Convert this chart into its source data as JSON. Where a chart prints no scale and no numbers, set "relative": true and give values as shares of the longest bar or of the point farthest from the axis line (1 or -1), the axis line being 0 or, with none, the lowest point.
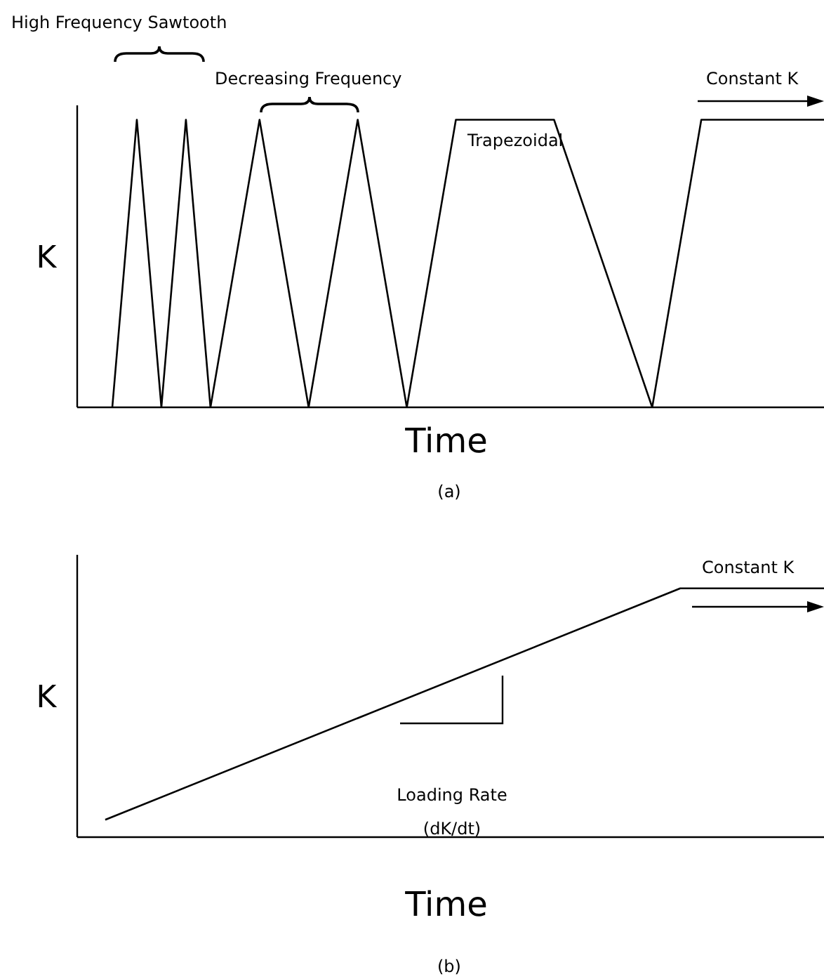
{
  "chart_data": [
    {
      "type": "line",
      "relative": true,
      "xlabel": "Time",
      "ylabel": "K",
      "categories": [
        null,
        null,
        null,
        null,
        null,
        null,
        null,
        null,
        null,
        null,
        null,
        null,
        null,
        null,
        null,
        null,
        null,
        null,
        null,
        null,
        null,
        null,
        null,
        null,
        null,
        null,
        null,
        null,
        null,
        null
      ],
      "series": [
        {
          "color": "#000000",
          "values": [
            0,
            1,
            0,
            1,
            0,
            null,
            1,
            null,
            0,
            null,
            1,
            null,
            0,
            null,
            1,
            null,
            null,
            null,
            1,
            null,
            null,
            null,
            0,
            null,
            1,
            null,
            null,
            null,
            null,
            1
          ]
        }
      ],
      "annotations": [
        "High Frequency Sawtooth",
        "Decreasing Frequency",
        "Trapezoidal",
        "Constant K",
        "(a)"
      ]
    },
    {
      "type": "line",
      "relative": true,
      "xlabel": "Time",
      "ylabel": "K",
      "categories": [
        null,
        null,
        null,
        null,
        null,
        null
      ],
      "series": [
        {
          "color": "#000000",
          "values": [
            0.07,
            null,
            null,
            null,
            1,
            1
          ]
        }
      ],
      "annotations": [
        "Constant K",
        "Loading Rate",
        "(dK/dt)",
        "(b)"
      ]
    }
  ]
}
